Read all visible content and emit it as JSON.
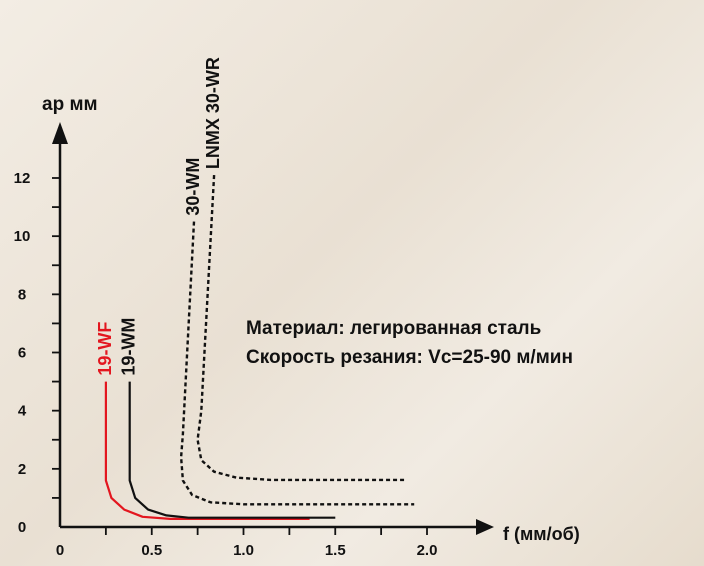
{
  "chart_data": {
    "type": "line",
    "xlabel": "f (мм/об)",
    "ylabel": "ap мм",
    "xlim": [
      0,
      2.0
    ],
    "ylim": [
      0,
      12
    ],
    "x_ticks": [
      "0",
      "0.5",
      "1.0",
      "1.5",
      "2.0"
    ],
    "y_ticks": [
      "0",
      "2",
      "4",
      "6",
      "8",
      "10",
      "12"
    ],
    "grid": false,
    "series": [
      {
        "name": "19-WF",
        "color": "#e3161f",
        "style": "solid",
        "points": [
          [
            0.25,
            5.0
          ],
          [
            0.25,
            1.6
          ],
          [
            0.28,
            1.0
          ],
          [
            0.35,
            0.6
          ],
          [
            0.45,
            0.35
          ],
          [
            0.6,
            0.28
          ],
          [
            1.36,
            0.28
          ]
        ]
      },
      {
        "name": "19-WM",
        "color": "#111111",
        "style": "solid",
        "points": [
          [
            0.38,
            5.0
          ],
          [
            0.38,
            1.6
          ],
          [
            0.41,
            1.0
          ],
          [
            0.48,
            0.6
          ],
          [
            0.58,
            0.4
          ],
          [
            0.7,
            0.32
          ],
          [
            1.5,
            0.32
          ]
        ]
      },
      {
        "name": "30-WM",
        "color": "#111111",
        "style": "dashed",
        "points": [
          [
            0.73,
            10.5
          ],
          [
            0.67,
            3.2
          ],
          [
            0.66,
            2.4
          ],
          [
            0.67,
            1.6
          ],
          [
            0.72,
            1.1
          ],
          [
            0.82,
            0.85
          ],
          [
            1.0,
            0.78
          ],
          [
            1.93,
            0.78
          ]
        ]
      },
      {
        "name": "LNMX 30-WR",
        "color": "#111111",
        "style": "dashed",
        "points": [
          [
            0.84,
            12.1
          ],
          [
            0.77,
            4.0
          ],
          [
            0.75,
            3.0
          ],
          [
            0.77,
            2.3
          ],
          [
            0.84,
            1.9
          ],
          [
            0.96,
            1.7
          ],
          [
            1.15,
            1.62
          ],
          [
            1.88,
            1.62
          ]
        ]
      }
    ]
  },
  "notes": {
    "line1": "Материал: легированная сталь",
    "line2": "Скорость резания: Vc=25-90 м/мин"
  }
}
